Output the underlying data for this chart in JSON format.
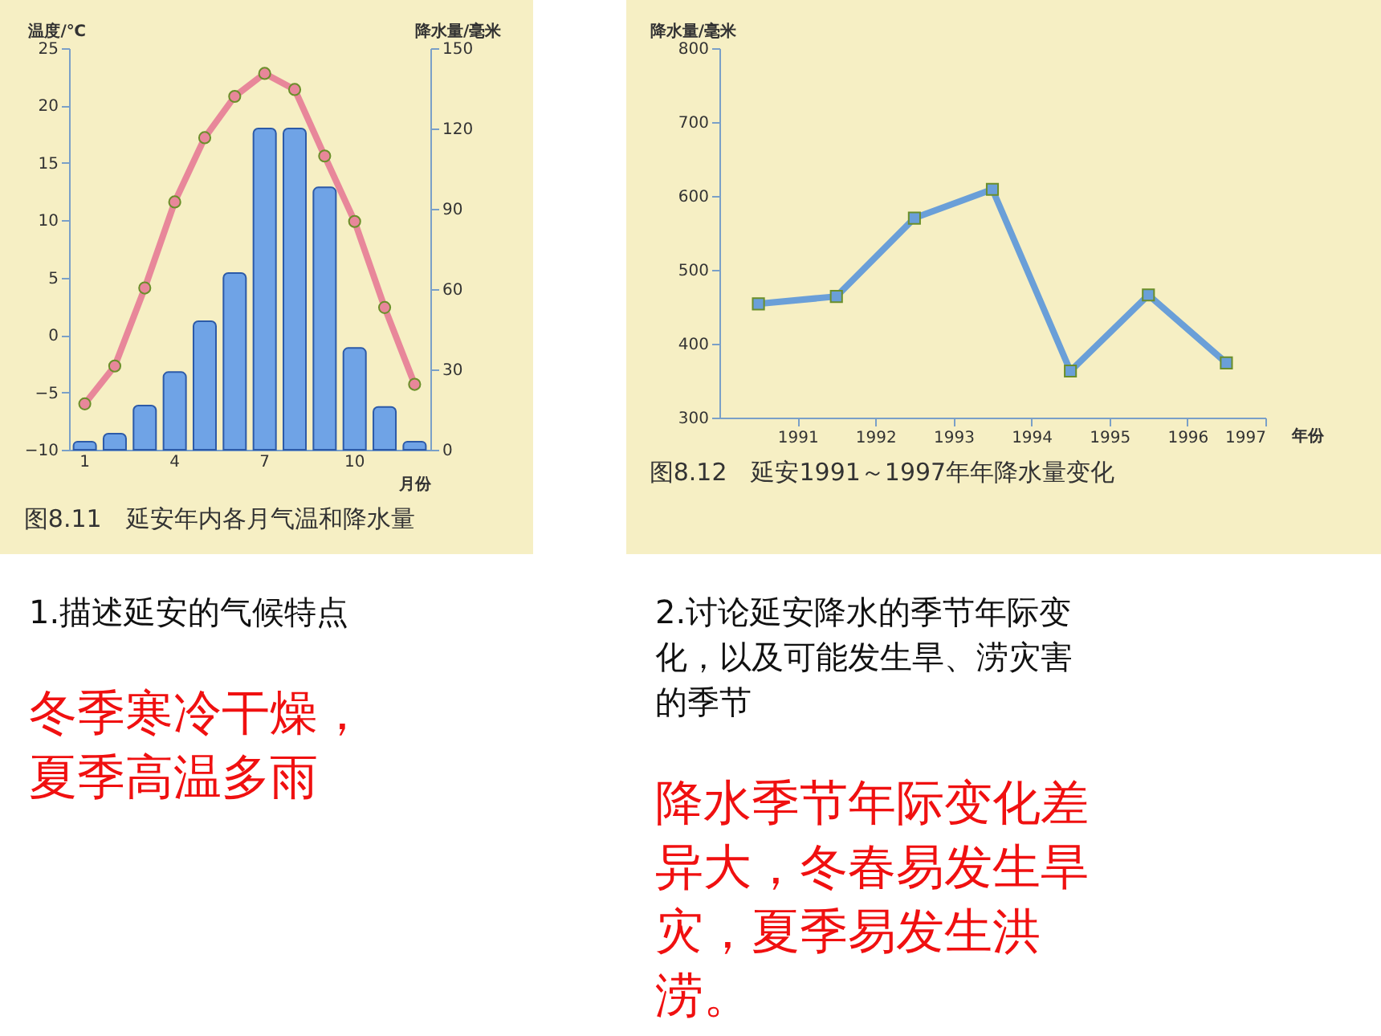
{
  "chart_data": [
    {
      "type": "bar",
      "title": "图8.11　延安年内各月气温和降水量",
      "ylabel": "温度/℃",
      "y2label": "降水量/毫米",
      "xlabel": "月份",
      "categories": [
        "1",
        null,
        null,
        "4",
        null,
        null,
        "7",
        null,
        null,
        "10",
        null,
        null
      ],
      "series": [
        {
          "type": "bar",
          "axis": "y2",
          "color": "#6fa3e6",
          "values": [
            3,
            6,
            16.5,
            29,
            48,
            66,
            120,
            120,
            98,
            38,
            16,
            3
          ]
        },
        {
          "type": "line",
          "color": "#e8879a",
          "marker": "circle",
          "values": [
            -6.0,
            -2.7,
            4.1,
            11.6,
            17.2,
            20.8,
            22.8,
            21.4,
            15.6,
            9.9,
            2.4,
            -4.3
          ]
        }
      ],
      "ylim": [
        -10,
        25
      ],
      "yticks": [
        -10,
        -5,
        0,
        5,
        10,
        15,
        20,
        25
      ],
      "y2lim": [
        0,
        150
      ],
      "y2ticks": [
        0,
        30,
        60,
        90,
        120,
        150
      ],
      "grid": false,
      "annotations": [
        "1.描述延安的气候特点",
        "冬季寒冷干燥，夏季高温多雨"
      ]
    },
    {
      "type": "line",
      "title": "图8.12　延安1991～1997年年降水量变化",
      "ylabel": "降水量/毫米",
      "xlabel": "年份",
      "x": [
        1990.5,
        1991.5,
        1992.5,
        1993.5,
        1994.5,
        1995.5,
        1996.5
      ],
      "series": [
        {
          "color": "#6a9fd8",
          "marker": "square",
          "values": [
            454,
            464,
            570,
            609,
            363,
            466,
            374
          ]
        }
      ],
      "xlim": [
        1990,
        1997
      ],
      "xticks": [
        1991,
        1992,
        1993,
        1994,
        1995,
        1996,
        1997
      ],
      "ylim": [
        300,
        800
      ],
      "yticks": [
        300,
        400,
        500,
        600,
        700,
        800
      ],
      "grid": false,
      "annotations": [
        "2.讨论延安降水的季节年际变化，以及可能发生旱、涝灾害的季节",
        "降水季节年际变化差异大，冬春易发生旱灾，夏季易发生洪涝。"
      ]
    }
  ]
}
